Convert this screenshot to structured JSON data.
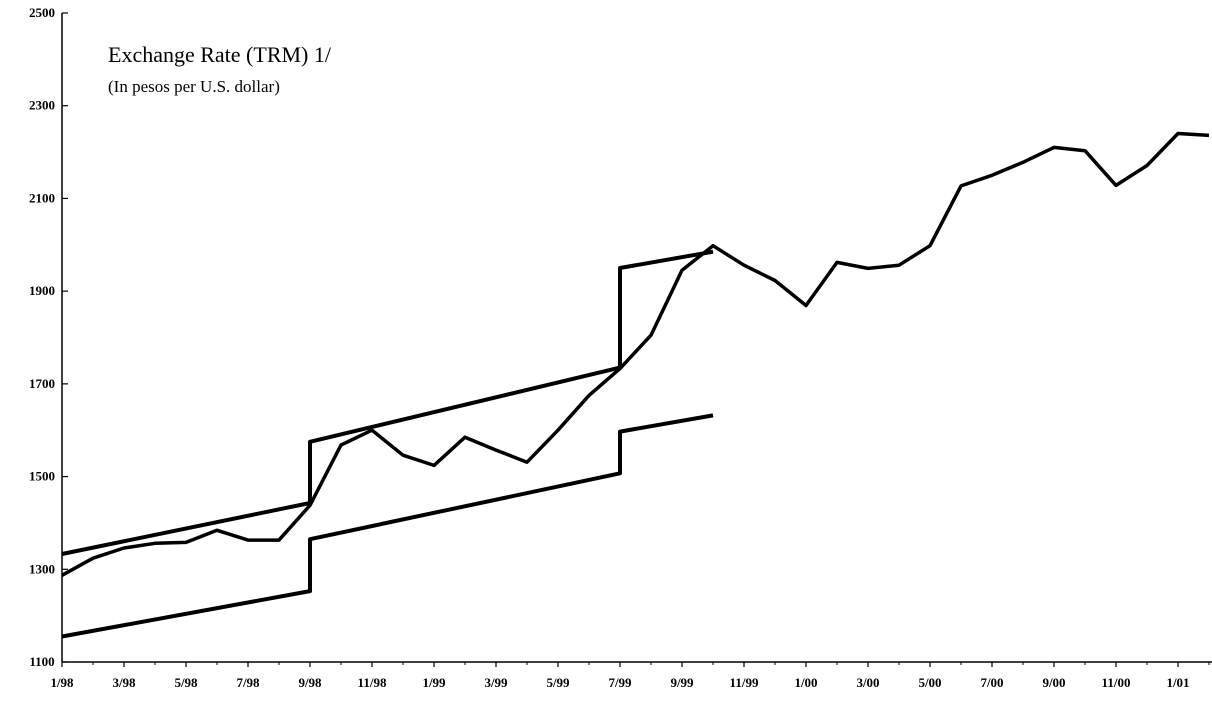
{
  "chart_data": {
    "type": "line",
    "title": "Exchange Rate (TRM) 1/",
    "subtitle": "(In pesos per U.S. dollar)",
    "xlim": [
      "1/98",
      "2/01"
    ],
    "xticks": [
      "1/98",
      "3/98",
      "5/98",
      "7/98",
      "9/98",
      "11/98",
      "1/99",
      "3/99",
      "5/99",
      "7/99",
      "9/99",
      "11/99",
      "1/00",
      "3/00",
      "5/00",
      "7/00",
      "9/00",
      "11/00",
      "1/01"
    ],
    "ylim": [
      1100,
      2500
    ],
    "yticks": [
      1100,
      1300,
      1500,
      1700,
      1900,
      2100,
      2300,
      2500
    ],
    "series": [
      {
        "color": "#000000",
        "x": [
          "1/98",
          "2/98",
          "3/98",
          "4/98",
          "5/98",
          "6/98",
          "7/98",
          "8/98",
          "9/98",
          "10/98",
          "11/98",
          "12/98",
          "1/99",
          "2/99",
          "3/99",
          "4/99",
          "5/99",
          "6/99",
          "7/99",
          "8/99",
          "9/99",
          "10/99",
          "11/99",
          "12/99",
          "1/00",
          "2/00",
          "3/00",
          "4/00",
          "5/00",
          "6/00",
          "7/00",
          "8/00",
          "9/00",
          "10/00",
          "11/00",
          "12/00",
          "1/01",
          "2/01"
        ],
        "values": [
          1287,
          1324,
          1346,
          1356,
          1358,
          1384,
          1363,
          1363,
          1438,
          1568,
          1600,
          1546,
          1524,
          1585,
          1557,
          1531,
          1600,
          1675,
          1733,
          1805,
          1945,
          1998,
          1956,
          1923,
          1869,
          1962,
          1949,
          1956,
          1998,
          2127,
          2150,
          2178,
          2210,
          2203,
          2128,
          2171,
          2240,
          2236
        ]
      },
      {
        "color": "#000000",
        "x": [
          "1/98",
          "9/98",
          "9/98",
          "7/99",
          "7/99",
          "10/99"
        ],
        "values": [
          1333,
          1443,
          1575,
          1735,
          1950,
          1985
        ]
      },
      {
        "color": "#000000",
        "x": [
          "1/98",
          "9/98",
          "9/98",
          "7/99",
          "7/99",
          "10/99"
        ],
        "values": [
          1155,
          1253,
          1365,
          1507,
          1597,
          1632
        ]
      }
    ]
  }
}
